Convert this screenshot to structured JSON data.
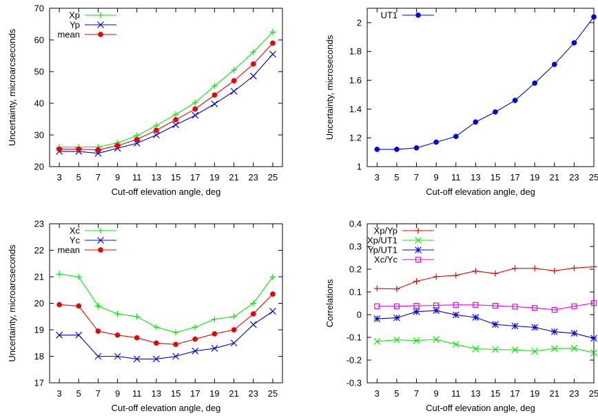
{
  "chart_data": [
    {
      "type": "line",
      "xlabel": "Cut-off elevation angle, deg",
      "ylabel": "Uncertainty, microarcseconds",
      "xticks": [
        3,
        5,
        7,
        9,
        11,
        13,
        15,
        17,
        19,
        21,
        23,
        25
      ],
      "xlim": [
        2,
        26
      ],
      "ylim": [
        20,
        70
      ],
      "yticks": [
        20,
        30,
        40,
        50,
        60,
        70
      ],
      "legend": "top-left",
      "grid": false,
      "series": [
        {
          "name": "Xp",
          "color": "#00ee00",
          "marker": "plus",
          "x": [
            3,
            5,
            7,
            9,
            11,
            13,
            15,
            17,
            19,
            21,
            23,
            25
          ],
          "y": [
            26.2,
            26.2,
            26.2,
            27.5,
            29.8,
            33.0,
            36.5,
            40.2,
            45.5,
            50.5,
            56.2,
            62.5
          ]
        },
        {
          "name": "Yp",
          "color": "#0000ee",
          "marker": "cross",
          "x": [
            3,
            5,
            7,
            9,
            11,
            13,
            15,
            17,
            19,
            21,
            23,
            25
          ],
          "y": [
            24.8,
            24.8,
            24.2,
            25.8,
            27.4,
            30.0,
            33.2,
            36.2,
            39.8,
            43.8,
            48.6,
            55.5
          ]
        },
        {
          "name": "mean",
          "color": "#ee0000",
          "marker": "dot",
          "x": [
            3,
            5,
            7,
            9,
            11,
            13,
            15,
            17,
            19,
            21,
            23,
            25
          ],
          "y": [
            25.5,
            25.5,
            25.3,
            26.6,
            28.6,
            31.5,
            34.8,
            38.2,
            42.6,
            47.1,
            52.4,
            59.0
          ]
        }
      ]
    },
    {
      "type": "line",
      "xlabel": "Cut-off elevation angle, deg",
      "ylabel": "Uncertainty, microseconds",
      "xticks": [
        3,
        5,
        7,
        9,
        11,
        13,
        15,
        17,
        19,
        21,
        23,
        25
      ],
      "xlim": [
        2,
        25
      ],
      "ylim": [
        1,
        2.1
      ],
      "yticks": [
        1,
        1.2,
        1.4,
        1.6,
        1.8,
        2
      ],
      "legend": "top-left",
      "grid": false,
      "series": [
        {
          "name": "UT1",
          "color": "#0000ee",
          "marker": "dot",
          "x": [
            3,
            5,
            7,
            9,
            11,
            13,
            15,
            17,
            19,
            21,
            23,
            25
          ],
          "y": [
            1.12,
            1.12,
            1.13,
            1.17,
            1.21,
            1.31,
            1.38,
            1.46,
            1.58,
            1.71,
            1.86,
            2.04
          ]
        }
      ]
    },
    {
      "type": "line",
      "xlabel": "Cut-off elevation angle, deg",
      "ylabel": "Uncertainty, microarcseconds",
      "xticks": [
        3,
        5,
        7,
        9,
        11,
        13,
        15,
        17,
        19,
        21,
        23,
        25
      ],
      "xlim": [
        2,
        26
      ],
      "ylim": [
        17,
        23
      ],
      "yticks": [
        17,
        18,
        19,
        20,
        21,
        22,
        23
      ],
      "legend": "top-left",
      "grid": false,
      "series": [
        {
          "name": "Xc",
          "color": "#00ee00",
          "marker": "plus",
          "x": [
            3,
            5,
            7,
            9,
            11,
            13,
            15,
            17,
            19,
            21,
            23,
            25
          ],
          "y": [
            21.1,
            21.0,
            19.9,
            19.6,
            19.5,
            19.1,
            18.9,
            19.1,
            19.4,
            19.5,
            20.0,
            21.0
          ]
        },
        {
          "name": "Yc",
          "color": "#0000ee",
          "marker": "cross",
          "x": [
            3,
            5,
            7,
            9,
            11,
            13,
            15,
            17,
            19,
            21,
            23,
            25
          ],
          "y": [
            18.8,
            18.8,
            18.0,
            18.0,
            17.9,
            17.9,
            18.0,
            18.2,
            18.3,
            18.5,
            19.2,
            19.7
          ]
        },
        {
          "name": "mean",
          "color": "#ee0000",
          "marker": "dot",
          "x": [
            3,
            5,
            7,
            9,
            11,
            13,
            15,
            17,
            19,
            21,
            23,
            25
          ],
          "y": [
            19.95,
            19.9,
            18.95,
            18.8,
            18.7,
            18.5,
            18.45,
            18.65,
            18.85,
            19.0,
            19.6,
            20.35
          ]
        }
      ]
    },
    {
      "type": "line",
      "xlabel": "Cut-off elevation angle, deg",
      "ylabel": "Correlations",
      "xticks": [
        3,
        5,
        7,
        9,
        11,
        13,
        15,
        17,
        19,
        21,
        23,
        25
      ],
      "xlim": [
        2,
        25
      ],
      "ylim": [
        -0.3,
        0.4
      ],
      "yticks": [
        -0.3,
        -0.2,
        -0.1,
        0,
        0.1,
        0.2,
        0.3,
        0.4
      ],
      "legend": "top-left",
      "grid": false,
      "series": [
        {
          "name": "Xp/Yp",
          "color": "#ee0000",
          "marker": "plus",
          "x": [
            3,
            5,
            7,
            9,
            11,
            13,
            15,
            17,
            19,
            21,
            23,
            25
          ],
          "y": [
            0.115,
            0.113,
            0.147,
            0.167,
            0.173,
            0.192,
            0.181,
            0.204,
            0.204,
            0.193,
            0.205,
            0.211
          ]
        },
        {
          "name": "Xp/UT1",
          "color": "#00ee00",
          "marker": "cross",
          "x": [
            3,
            5,
            7,
            9,
            11,
            13,
            15,
            17,
            19,
            21,
            23,
            25
          ],
          "y": [
            -0.118,
            -0.111,
            -0.114,
            -0.109,
            -0.131,
            -0.15,
            -0.153,
            -0.155,
            -0.161,
            -0.149,
            -0.148,
            -0.168
          ]
        },
        {
          "name": "Yp/UT1",
          "color": "#0000ee",
          "marker": "star",
          "x": [
            3,
            5,
            7,
            9,
            11,
            13,
            15,
            17,
            19,
            21,
            23,
            25
          ],
          "y": [
            -0.018,
            -0.014,
            0.013,
            0.018,
            -0.001,
            -0.012,
            -0.043,
            -0.05,
            -0.056,
            -0.075,
            -0.082,
            -0.104
          ]
        },
        {
          "name": "Xc/Yc",
          "color": "#ee00ee",
          "marker": "square",
          "x": [
            3,
            5,
            7,
            9,
            11,
            13,
            15,
            17,
            19,
            21,
            23,
            25
          ],
          "y": [
            0.037,
            0.037,
            0.039,
            0.041,
            0.043,
            0.043,
            0.039,
            0.035,
            0.03,
            0.021,
            0.037,
            0.051
          ]
        }
      ]
    }
  ]
}
